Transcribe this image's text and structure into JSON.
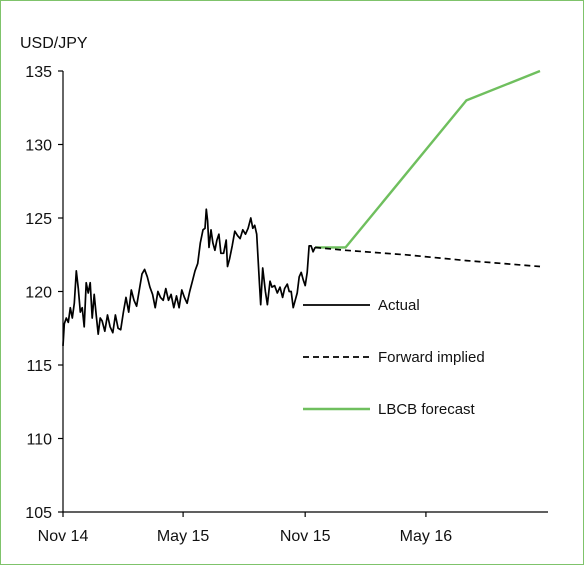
{
  "chart_data": {
    "type": "line",
    "title": "",
    "ylabel": "USD/JPY",
    "xlabel": "",
    "ylim": [
      105,
      135
    ],
    "yticks": [
      105,
      110,
      115,
      120,
      125,
      130,
      135
    ],
    "xlim": [
      "2014-11-01",
      "2016-11-01"
    ],
    "xticks": [
      {
        "label": "Nov 14",
        "date": "2014-11-01"
      },
      {
        "label": "May 15",
        "date": "2015-05-01"
      },
      {
        "label": "Nov 15",
        "date": "2015-11-01"
      },
      {
        "label": "May 16",
        "date": "2016-05-01"
      }
    ],
    "legend_position": "center-right",
    "grid": false,
    "series": [
      {
        "name": "Actual",
        "style": "solid",
        "color": "#000000",
        "points": [
          [
            "2014-11-01",
            116.3
          ],
          [
            "2014-11-03",
            117.8
          ],
          [
            "2014-11-06",
            118.2
          ],
          [
            "2014-11-09",
            117.9
          ],
          [
            "2014-11-12",
            118.9
          ],
          [
            "2014-11-15",
            118.2
          ],
          [
            "2014-11-18",
            119.2
          ],
          [
            "2014-11-21",
            121.4
          ],
          [
            "2014-11-24",
            120.2
          ],
          [
            "2014-11-27",
            118.6
          ],
          [
            "2014-11-30",
            118.9
          ],
          [
            "2014-12-03",
            117.6
          ],
          [
            "2014-12-06",
            120.6
          ],
          [
            "2014-12-09",
            119.9
          ],
          [
            "2014-12-12",
            120.6
          ],
          [
            "2014-12-15",
            118.2
          ],
          [
            "2014-12-18",
            119.8
          ],
          [
            "2014-12-21",
            118.4
          ],
          [
            "2014-12-24",
            117.1
          ],
          [
            "2014-12-27",
            118.2
          ],
          [
            "2014-12-30",
            118.0
          ],
          [
            "2015-01-03",
            117.3
          ],
          [
            "2015-01-07",
            118.4
          ],
          [
            "2015-01-11",
            117.6
          ],
          [
            "2015-01-15",
            117.2
          ],
          [
            "2015-01-19",
            118.4
          ],
          [
            "2015-01-23",
            117.5
          ],
          [
            "2015-01-27",
            117.4
          ],
          [
            "2015-01-31",
            118.6
          ],
          [
            "2015-02-04",
            119.6
          ],
          [
            "2015-02-08",
            118.6
          ],
          [
            "2015-02-12",
            120.1
          ],
          [
            "2015-02-16",
            119.4
          ],
          [
            "2015-02-20",
            119.0
          ],
          [
            "2015-02-24",
            120.1
          ],
          [
            "2015-02-28",
            121.2
          ],
          [
            "2015-03-04",
            121.5
          ],
          [
            "2015-03-08",
            121.0
          ],
          [
            "2015-03-12",
            120.3
          ],
          [
            "2015-03-16",
            119.8
          ],
          [
            "2015-03-20",
            118.9
          ],
          [
            "2015-03-24",
            120.0
          ],
          [
            "2015-03-28",
            119.6
          ],
          [
            "2015-04-01",
            119.4
          ],
          [
            "2015-04-05",
            120.2
          ],
          [
            "2015-04-09",
            119.4
          ],
          [
            "2015-04-13",
            119.8
          ],
          [
            "2015-04-17",
            118.9
          ],
          [
            "2015-04-21",
            119.7
          ],
          [
            "2015-04-25",
            118.9
          ],
          [
            "2015-04-29",
            120.1
          ],
          [
            "2015-05-03",
            119.6
          ],
          [
            "2015-05-07",
            119.2
          ],
          [
            "2015-05-11",
            120.0
          ],
          [
            "2015-05-15",
            120.7
          ],
          [
            "2015-05-19",
            121.4
          ],
          [
            "2015-05-23",
            121.9
          ],
          [
            "2015-05-27",
            123.3
          ],
          [
            "2015-05-31",
            124.2
          ],
          [
            "2015-06-03",
            124.3
          ],
          [
            "2015-06-05",
            125.6
          ],
          [
            "2015-06-07",
            124.8
          ],
          [
            "2015-06-09",
            123.0
          ],
          [
            "2015-06-12",
            124.2
          ],
          [
            "2015-06-15",
            123.3
          ],
          [
            "2015-06-18",
            122.8
          ],
          [
            "2015-06-21",
            123.5
          ],
          [
            "2015-06-24",
            123.9
          ],
          [
            "2015-06-27",
            122.6
          ],
          [
            "2015-07-01",
            122.6
          ],
          [
            "2015-07-05",
            123.5
          ],
          [
            "2015-07-07",
            121.7
          ],
          [
            "2015-07-10",
            122.2
          ],
          [
            "2015-07-14",
            123.1
          ],
          [
            "2015-07-18",
            124.1
          ],
          [
            "2015-07-22",
            123.8
          ],
          [
            "2015-07-26",
            123.6
          ],
          [
            "2015-07-30",
            124.2
          ],
          [
            "2015-08-03",
            123.9
          ],
          [
            "2015-08-07",
            124.3
          ],
          [
            "2015-08-11",
            125.0
          ],
          [
            "2015-08-14",
            124.3
          ],
          [
            "2015-08-17",
            124.5
          ],
          [
            "2015-08-20",
            123.9
          ],
          [
            "2015-08-24",
            120.6
          ],
          [
            "2015-08-26",
            119.1
          ],
          [
            "2015-08-29",
            121.6
          ],
          [
            "2015-09-02",
            120.0
          ],
          [
            "2015-09-05",
            119.1
          ],
          [
            "2015-09-09",
            120.7
          ],
          [
            "2015-09-12",
            120.3
          ],
          [
            "2015-09-16",
            120.4
          ],
          [
            "2015-09-20",
            119.9
          ],
          [
            "2015-09-24",
            120.3
          ],
          [
            "2015-09-28",
            119.6
          ],
          [
            "2015-10-01",
            120.2
          ],
          [
            "2015-10-05",
            120.5
          ],
          [
            "2015-10-08",
            120.0
          ],
          [
            "2015-10-11",
            120.0
          ],
          [
            "2015-10-14",
            118.9
          ],
          [
            "2015-10-17",
            119.4
          ],
          [
            "2015-10-20",
            119.9
          ],
          [
            "2015-10-23",
            121.0
          ],
          [
            "2015-10-26",
            121.3
          ],
          [
            "2015-10-29",
            120.8
          ],
          [
            "2015-11-01",
            120.4
          ],
          [
            "2015-11-04",
            121.3
          ],
          [
            "2015-11-07",
            123.1
          ],
          [
            "2015-11-10",
            123.1
          ],
          [
            "2015-11-13",
            122.7
          ],
          [
            "2015-11-16",
            123.0
          ]
        ]
      },
      {
        "name": "Forward implied",
        "style": "dashed",
        "color": "#000000",
        "points": [
          [
            "2015-11-16",
            123.0
          ],
          [
            "2016-01-01",
            122.8
          ],
          [
            "2016-04-01",
            122.5
          ],
          [
            "2016-07-01",
            122.1
          ],
          [
            "2016-10-20",
            121.7
          ]
        ]
      },
      {
        "name": "LBCB forecast",
        "style": "solid",
        "color": "#6fbf5e",
        "points": [
          [
            "2015-11-16",
            123.0
          ],
          [
            "2016-01-01",
            123.0
          ],
          [
            "2016-07-01",
            133.0
          ],
          [
            "2016-10-20",
            135.0
          ]
        ]
      }
    ]
  }
}
